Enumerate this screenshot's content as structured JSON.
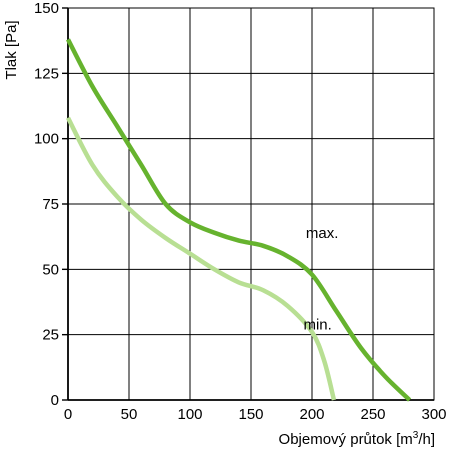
{
  "chart_data": {
    "type": "line",
    "xlabel": {
      "prefix": "Objemový průtok [m",
      "superscript": "3",
      "suffix": "/h]"
    },
    "ylabel": "Tlak [Pa]",
    "xlim": [
      0,
      300
    ],
    "ylim": [
      0,
      150
    ],
    "xticks": [
      "0",
      "50",
      "100",
      "150",
      "200",
      "250",
      "300"
    ],
    "yticks": [
      "0",
      "25",
      "50",
      "75",
      "100",
      "125",
      "150"
    ],
    "grid": true,
    "series": [
      {
        "name": "max.",
        "color": "#66b32e",
        "x": [
          0,
          20,
          40,
          60,
          80,
          100,
          120,
          140,
          160,
          180,
          200,
          220,
          240,
          260,
          280
        ],
        "y": [
          138,
          120,
          105,
          90,
          75,
          68,
          64,
          61,
          59,
          55,
          48,
          34,
          20,
          9,
          0
        ]
      },
      {
        "name": "min.",
        "color": "#b8df93",
        "x": [
          0,
          20,
          40,
          60,
          80,
          100,
          120,
          140,
          160,
          180,
          200,
          210,
          218
        ],
        "y": [
          108,
          90,
          78,
          69,
          62,
          56,
          50,
          45,
          42,
          36,
          26,
          15,
          0
        ]
      }
    ],
    "labels": [
      {
        "text": "max.",
        "x": 195,
        "y": 62
      },
      {
        "text": "min.",
        "x": 193,
        "y": 27
      }
    ]
  }
}
